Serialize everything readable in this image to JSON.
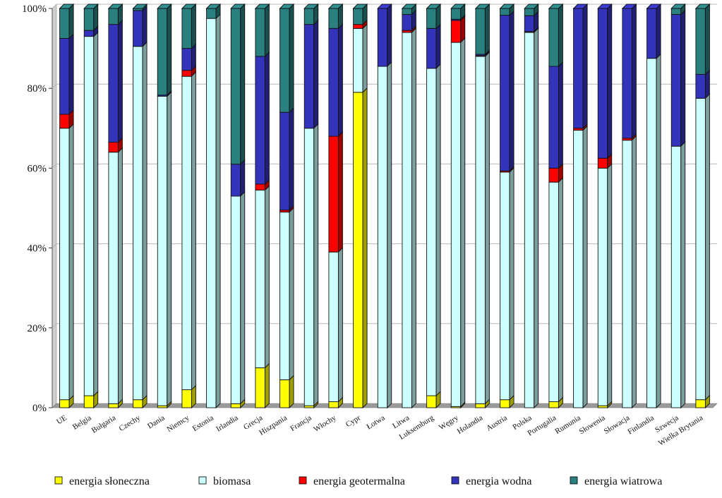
{
  "chart_data": {
    "type": "bar",
    "stacked": true,
    "percent": true,
    "ylim": [
      0,
      100
    ],
    "yticks": [
      0,
      20,
      40,
      60,
      80,
      100
    ],
    "ytick_labels": [
      "0%",
      "20%",
      "40%",
      "60%",
      "80%",
      "100%"
    ],
    "grid": true,
    "legend_position": "bottom",
    "categories": [
      "UE",
      "Belgia",
      "Bułgaria",
      "Czechy",
      "Dania",
      "Niemcy",
      "Estonia",
      "Irlandia",
      "Grecja",
      "Hiszpania",
      "Francja",
      "Włochy",
      "Cypr",
      "Łotwa",
      "Litwa",
      "Luksemburg",
      "Węgry",
      "Holandia",
      "Austria",
      "Polska",
      "Portugalia",
      "Rumunia",
      "Słowenia",
      "Słowacja",
      "Finlandia",
      "Szwecja",
      "Wielka Brytania"
    ],
    "series": [
      {
        "name": "energia słoneczna",
        "color": "#ffff00",
        "values": [
          2,
          3,
          1,
          2,
          0.5,
          4.5,
          0,
          1,
          10,
          7,
          0.5,
          1.5,
          79,
          0,
          0,
          3,
          0.3,
          1,
          2,
          0,
          1.5,
          0,
          0.5,
          0,
          0,
          0,
          2
        ]
      },
      {
        "name": "biomasa",
        "color": "#ccffff",
        "values": [
          68,
          90,
          63,
          88.5,
          77.5,
          78.5,
          97.5,
          52,
          44.5,
          42,
          69.5,
          37.5,
          16,
          85.5,
          94,
          82,
          91.2,
          87,
          57,
          94,
          55,
          69.5,
          59.5,
          67,
          87.5,
          65.5,
          75.5
        ]
      },
      {
        "name": "energia geotermalna",
        "color": "#ff0000",
        "values": [
          3.5,
          0,
          2.5,
          0,
          0,
          1.5,
          0,
          0,
          1.5,
          0.5,
          0,
          29,
          1,
          0,
          0.5,
          0,
          5.5,
          0.2,
          0.3,
          0.2,
          3.5,
          0.5,
          2.5,
          0.5,
          0,
          0,
          0
        ]
      },
      {
        "name": "energia wodna",
        "color": "#3333bb",
        "values": [
          19,
          1.5,
          29.5,
          9,
          0.3,
          5.5,
          0,
          8,
          32,
          24.5,
          26,
          27,
          0,
          14.5,
          4,
          10,
          0.3,
          0.3,
          39,
          4,
          25.5,
          30,
          37.5,
          33,
          12.5,
          33,
          6
        ]
      },
      {
        "name": "energia wiatrowa",
        "color": "#2a7f7f",
        "values": [
          7.5,
          5.5,
          4,
          0.5,
          21.7,
          10,
          2.5,
          39,
          12,
          26,
          4,
          5,
          4,
          0,
          1.5,
          5,
          2.7,
          11.5,
          1.7,
          1.8,
          14.5,
          0,
          0,
          -0.5,
          0,
          1.5,
          16.5
        ]
      }
    ]
  }
}
